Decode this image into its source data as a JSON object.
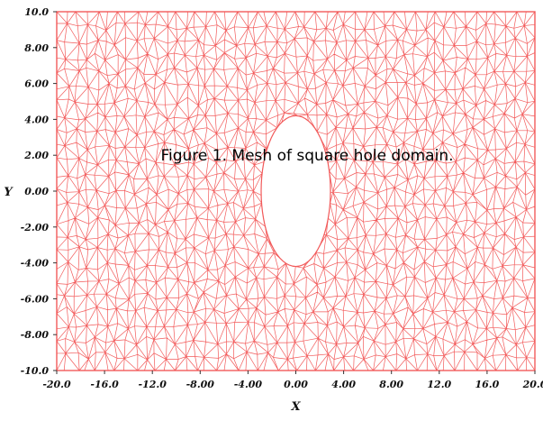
{
  "caption": "Figure 1. Mesh of square hole domain.",
  "x_axis_label": "X",
  "y_axis_label": "Y",
  "x_ticks": [
    "-20.0",
    "-16.0",
    "-12.0",
    "-8.00",
    "-4.00",
    "0.00",
    "4.00",
    "8.00",
    "12.0",
    "16.0",
    "20.0"
  ],
  "y_ticks": [
    "10.0",
    "8.00",
    "6.00",
    "4.00",
    "2.00",
    "0.00",
    "-2.00",
    "-4.00",
    "-6.00",
    "-8.00",
    "-10.0"
  ],
  "domain": {
    "x_range": [
      -20,
      20
    ],
    "y_range": [
      -10,
      10
    ]
  },
  "hole": {
    "shape": "ellipse",
    "center": [
      0,
      0
    ],
    "radius_x": 2.9,
    "radius_y": 4.2
  },
  "colors": {
    "mesh": "#f25a5a",
    "hole_fill": "#ffffff",
    "text": "#111111",
    "background": "#ffffff"
  }
}
